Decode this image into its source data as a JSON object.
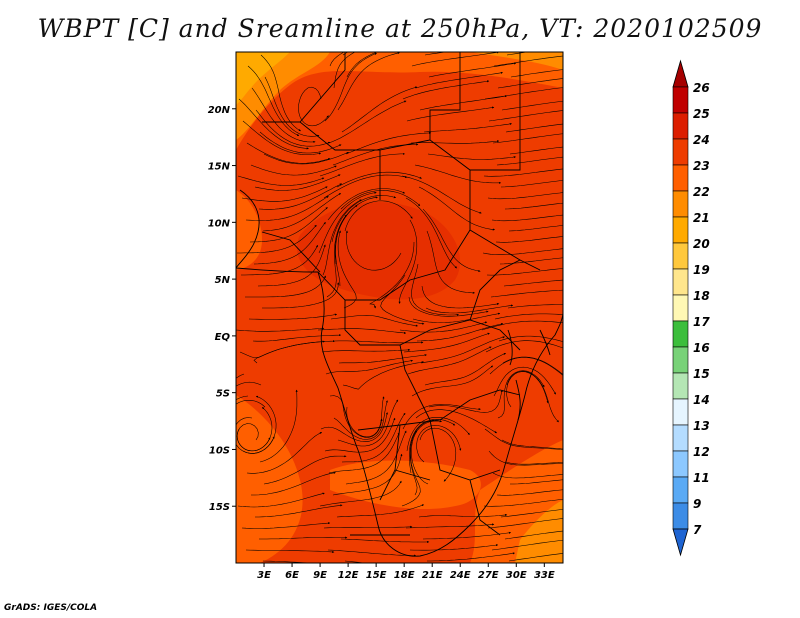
{
  "title": "WBPT [C] and Sreamline at 250hPa, VT: 2020102509",
  "footer": "GrADS: IGES/COLA",
  "map": {
    "lat_labels": [
      "20N",
      "15N",
      "10N",
      "5N",
      "EQ",
      "5S",
      "10S",
      "15S"
    ],
    "lat_values": [
      20,
      15,
      10,
      5,
      0,
      -5,
      -10,
      -15
    ],
    "lon_labels": [
      "3E",
      "6E",
      "9E",
      "12E",
      "15E",
      "18E",
      "21E",
      "24E",
      "27E",
      "30E",
      "33E"
    ],
    "lon_values": [
      3,
      6,
      9,
      12,
      15,
      18,
      21,
      24,
      27,
      30,
      33
    ]
  },
  "colorbar": {
    "labels": [
      "26",
      "25",
      "24",
      "23",
      "22",
      "21",
      "20",
      "19",
      "18",
      "17",
      "16",
      "15",
      "14",
      "13",
      "12",
      "11",
      "9",
      "7"
    ],
    "colors": [
      "#a50000",
      "#c00000",
      "#dc1e00",
      "#ee3c00",
      "#ff5f00",
      "#ff8c00",
      "#ffaa00",
      "#ffc83c",
      "#ffe68c",
      "#fff8b4",
      "#3cbe3c",
      "#78d278",
      "#b4e6b4",
      "#e6f5ff",
      "#b4dcff",
      "#8cc8ff",
      "#5aaaf5",
      "#3c8ce6",
      "#1e64d2"
    ]
  },
  "field_colors": {
    "dominant": "#ee3c00",
    "warm_lobe": "#dc1e00",
    "cool_lobe": "#ff5f00",
    "cooler_lobe": "#ff8c00",
    "coolest_lobe": "#ffaa00"
  }
}
